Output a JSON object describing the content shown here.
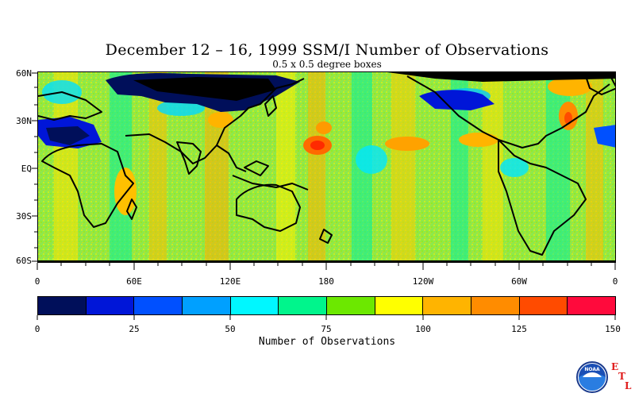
{
  "title": "December 12 – 16, 1999 SSM/I Number of Observations",
  "subtitle": "0.5 x 0.5 degree boxes",
  "map": {
    "lat_labels": [
      "60N",
      "30N",
      "EQ",
      "30S",
      "60S"
    ],
    "lon_labels": [
      "0",
      "60E",
      "120E",
      "180",
      "120W",
      "60W",
      "0"
    ]
  },
  "colorbar": {
    "title": "Number of Observations",
    "tick_labels": [
      "0",
      "25",
      "50",
      "75",
      "100",
      "125",
      "150"
    ],
    "colors": [
      "#000f5a",
      "#0016d8",
      "#0050ff",
      "#00a0ff",
      "#00f7ff",
      "#00f58c",
      "#6ce800",
      "#ffff00",
      "#ffb400",
      "#ff8c00",
      "#ff4b00",
      "#ff0a3c"
    ]
  },
  "logo": {
    "icon": "noaa-logo-icon",
    "logo_text": "NOAA",
    "letters": [
      "E",
      "T",
      "L"
    ]
  }
}
